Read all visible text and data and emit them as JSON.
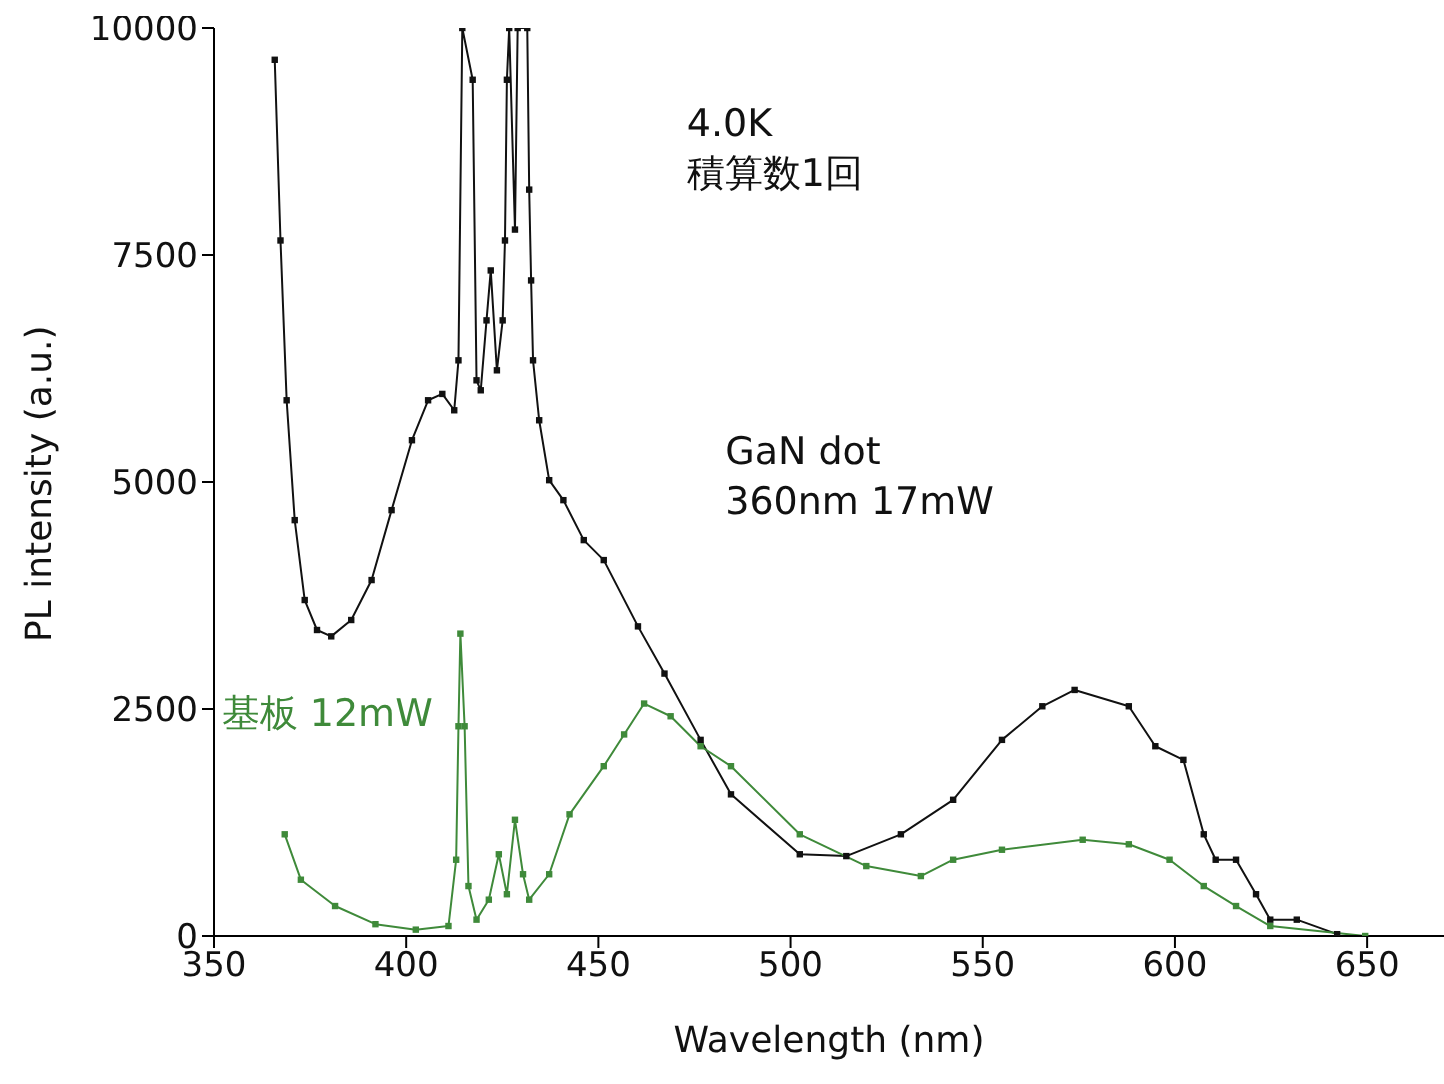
{
  "chart_data": {
    "type": "line",
    "xlabel": "Wavelength (nm)",
    "ylabel": "PL intensity (a.u.)",
    "xlim": [
      350,
      670
    ],
    "xticks": [
      350,
      400,
      450,
      500,
      550,
      600,
      650
    ],
    "ylim": [
      0,
      10000
    ],
    "yticks": [
      0,
      2500,
      5000,
      7500,
      10000
    ],
    "grid": false,
    "legend": false,
    "marker": "square",
    "line_style": "solid",
    "annotations": [
      "4.0K\n積算数1回"
    ],
    "series": [
      {
        "name": "GaN dot\n360nm 17mW",
        "color": "#111111",
        "x": [
          365.8,
          367.3,
          368.9,
          371,
          373.6,
          376.8,
          380.5,
          385.7,
          391,
          396.2,
          401.5,
          405.7,
          409.4,
          412.5,
          413.6,
          414.6,
          417.3,
          418.3,
          419.4,
          420.9,
          422,
          423.6,
          425.1,
          425.7,
          426.2,
          426.8,
          428.3,
          429,
          431.5,
          432,
          432.5,
          433,
          434.6,
          437.2,
          440.9,
          446.2,
          451.4,
          460.3,
          467.2,
          476.6,
          484.5,
          502.4,
          514.5,
          528.7,
          542.3,
          555,
          565.5,
          573.9,
          588,
          594.9,
          602.2,
          607.5,
          610.6,
          615.9,
          621.1,
          624.8,
          631.7,
          642.2
        ],
        "values": [
          9650,
          7660,
          5900,
          4580,
          3700,
          3370,
          3300,
          3480,
          3920,
          4690,
          5460,
          5900,
          5970,
          5790,
          6340,
          10000,
          9430,
          6120,
          6010,
          6780,
          7330,
          6230,
          6780,
          7660,
          9430,
          10000,
          7780,
          10000,
          10000,
          8220,
          7220,
          6340,
          5680,
          5020,
          4800,
          4360,
          4140,
          3410,
          2890,
          2160,
          1560,
          900,
          880,
          1120,
          1500,
          2160,
          2530,
          2710,
          2530,
          2090,
          1940,
          1120,
          840,
          840,
          460,
          180,
          180,
          20
        ]
      },
      {
        "name": "基板 12mW",
        "color": "#3f8a3a",
        "x": [
          368.4,
          372.6,
          381.5,
          392,
          402.5,
          411,
          413,
          413.6,
          414.1,
          415.2,
          416.2,
          418.3,
          421.5,
          424.1,
          426.2,
          428.3,
          430.4,
          432,
          437.2,
          442.5,
          451.4,
          456.7,
          461.9,
          468.8,
          476.6,
          484.5,
          502.4,
          519.7,
          533.9,
          542.3,
          555,
          576,
          588,
          598.6,
          607.5,
          615.9,
          624.8,
          649.5
        ],
        "values": [
          1120,
          620,
          330,
          130,
          70,
          110,
          840,
          2310,
          3330,
          2310,
          550,
          180,
          400,
          900,
          460,
          1280,
          680,
          400,
          680,
          1340,
          1870,
          2220,
          2560,
          2420,
          2090,
          1870,
          1120,
          770,
          660,
          840,
          950,
          1060,
          1010,
          840,
          550,
          330,
          110,
          0
        ]
      }
    ]
  }
}
